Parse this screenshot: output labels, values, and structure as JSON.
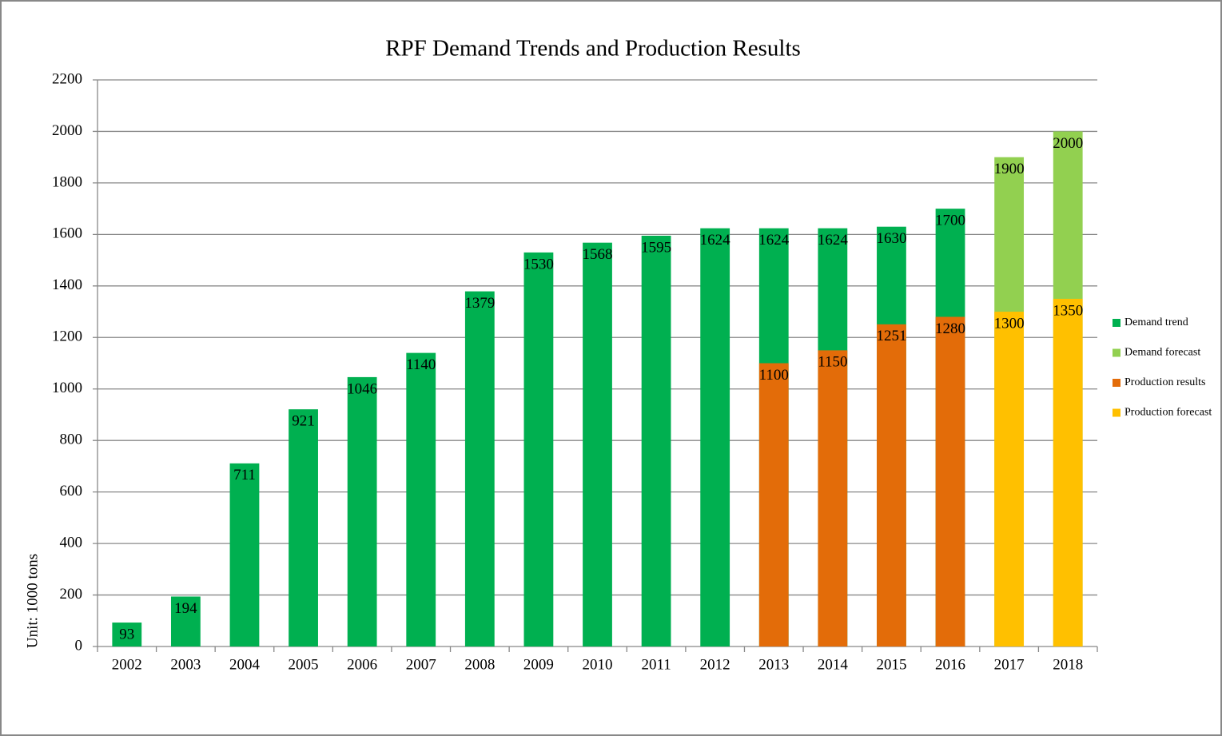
{
  "chart_data": {
    "type": "bar",
    "overlap": true,
    "title": "RPF Demand Trends and Production Results",
    "y_label": "Unit: 1000 tons",
    "categories": [
      "2002",
      "2003",
      "2004",
      "2005",
      "2006",
      "2007",
      "2008",
      "2009",
      "2010",
      "2011",
      "2012",
      "2013",
      "2014",
      "2015",
      "2016",
      "2017",
      "2018"
    ],
    "series": [
      {
        "name": "Demand trend",
        "color": "#00b050",
        "values": [
          93,
          194,
          711,
          921,
          1046,
          1140,
          1379,
          1530,
          1568,
          1595,
          1624,
          1624,
          1624,
          1630,
          1700,
          null,
          null
        ]
      },
      {
        "name": "Demand forecast",
        "color": "#92d050",
        "values": [
          null,
          null,
          null,
          null,
          null,
          null,
          null,
          null,
          null,
          null,
          null,
          null,
          null,
          null,
          null,
          1900,
          2000
        ]
      },
      {
        "name": "Production results",
        "color": "#e36c09",
        "values": [
          null,
          null,
          null,
          null,
          null,
          null,
          null,
          null,
          null,
          null,
          null,
          1100,
          1150,
          1251,
          1280,
          null,
          null
        ]
      },
      {
        "name": "Production forecast",
        "color": "#ffc000",
        "values": [
          null,
          null,
          null,
          null,
          null,
          null,
          null,
          null,
          null,
          null,
          null,
          null,
          null,
          null,
          null,
          1300,
          1350
        ]
      }
    ],
    "ylim": [
      0,
      2200
    ],
    "yticks": [
      0,
      200,
      400,
      600,
      800,
      1000,
      1200,
      1400,
      1600,
      1800,
      2000,
      2200
    ],
    "grid": true,
    "legend": "right"
  }
}
